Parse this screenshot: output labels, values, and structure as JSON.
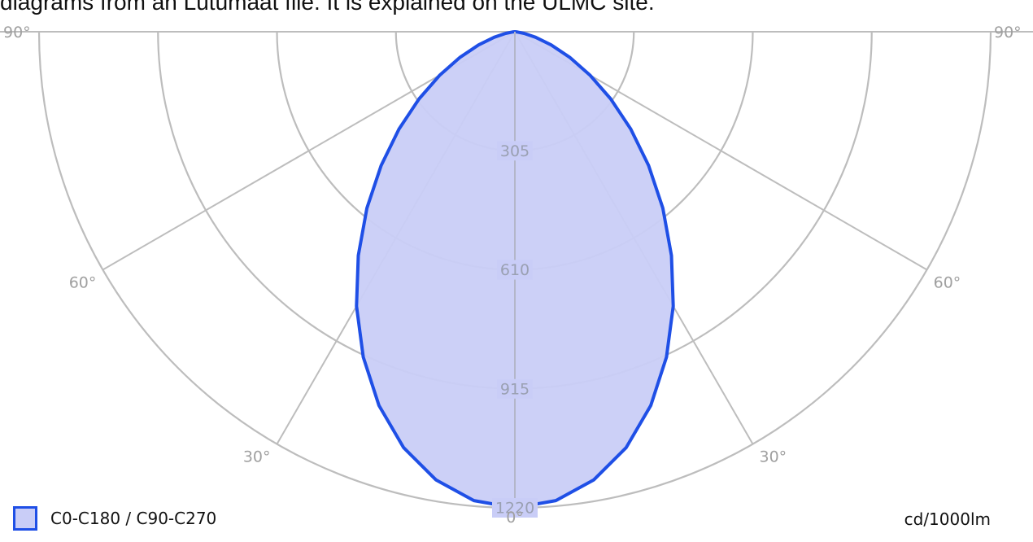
{
  "header": {
    "text": "diagrams from an Lutumaat file. It is explained on the ULMC site."
  },
  "chart_data": {
    "type": "polar",
    "title": "",
    "unit": "cd/1000lm",
    "radial_ticks": [
      305,
      610,
      915,
      1220
    ],
    "radial_max": 1220,
    "angle_labels": [
      {
        "text": "90°",
        "side": "left",
        "angle": 90
      },
      {
        "text": "90°",
        "side": "right",
        "angle": 90
      },
      {
        "text": "60°",
        "side": "left",
        "angle": 60
      },
      {
        "text": "60°",
        "side": "right",
        "angle": 60
      },
      {
        "text": "30°",
        "side": "left",
        "angle": 30
      },
      {
        "text": "30°",
        "side": "right",
        "angle": 30
      },
      {
        "text": "0°",
        "side": "bottom",
        "angle": 0
      }
    ],
    "series": [
      {
        "name": "C0-C180 / C90-C270",
        "color": "#1f4fe6",
        "fill": "#c9cdf7",
        "angles": [
          0,
          5,
          10,
          15,
          20,
          25,
          30,
          35,
          40,
          45,
          50,
          55,
          60,
          65,
          70,
          75,
          80,
          85,
          90
        ],
        "values": [
          1220,
          1206,
          1166,
          1103,
          1019,
          920,
          812,
          700,
          590,
          485,
          388,
          300,
          222,
          155,
          99,
          55,
          24,
          6,
          0
        ]
      }
    ]
  },
  "legend": {
    "label": "C0-C180 / C90-C270"
  },
  "footer": {
    "unit": "cd/1000lm"
  }
}
